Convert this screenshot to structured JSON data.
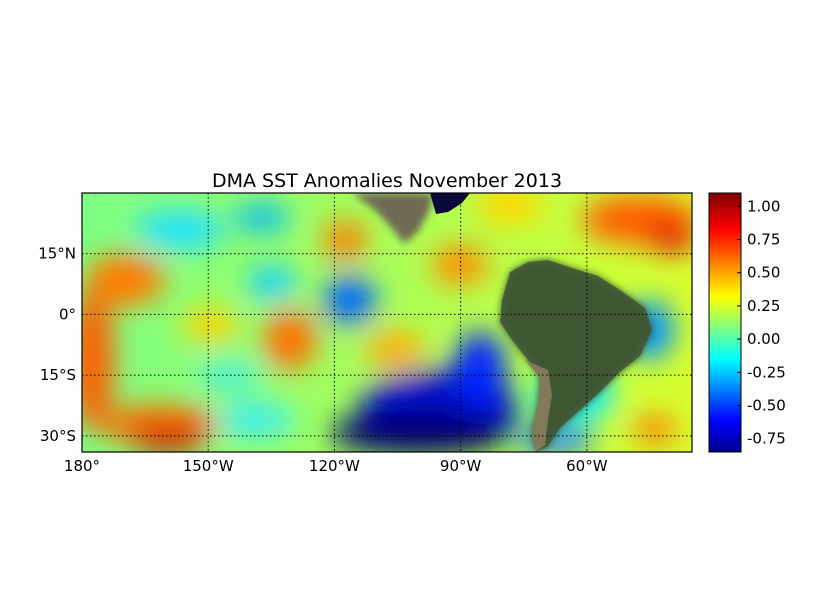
{
  "map": {
    "title": "DMA SST Anomalies November 2013",
    "lon_ticks": [
      "180°",
      "150°W",
      "120°W",
      "90°W",
      "60°W"
    ],
    "lat_ticks": [
      "15°N",
      "0°",
      "15°S",
      "30°S"
    ],
    "grid": true,
    "extent": {
      "lon_min": -180,
      "lon_max": -35,
      "lat_max": 30,
      "lat_min": -34
    },
    "lon_tick_values": [
      -180,
      -150,
      -120,
      -90,
      -60
    ],
    "lat_tick_values": [
      15,
      0,
      -15,
      -30
    ]
  },
  "colorbar": {
    "colormap": "jet",
    "vmin": -0.85,
    "vmax": 1.1,
    "tick_labels": [
      "1.00",
      "0.75",
      "0.50",
      "0.25",
      "0.00",
      "-0.25",
      "-0.50",
      "-0.75"
    ],
    "tick_values": [
      1.0,
      0.75,
      0.5,
      0.25,
      0.0,
      -0.25,
      -0.5,
      -0.75
    ],
    "colors": [
      "#00008f",
      "#0000ff",
      "#00ffff",
      "#ffff00",
      "#ff0000",
      "#800000"
    ]
  }
}
